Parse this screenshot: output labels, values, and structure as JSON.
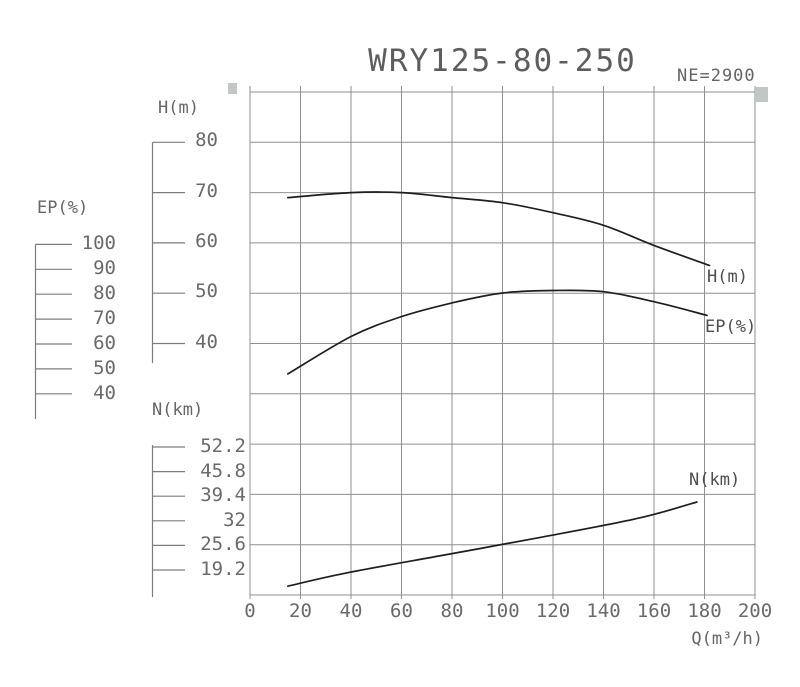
{
  "title": "WRY125-80-250",
  "speed_label": "NE=2900",
  "axes": {
    "h": {
      "title": "H(m)",
      "ticks": [
        "80",
        "70",
        "60",
        "50",
        "40"
      ]
    },
    "ep": {
      "title": "EP(%)",
      "ticks": [
        "100",
        "90",
        "80",
        "70",
        "60",
        "50",
        "40"
      ]
    },
    "n": {
      "title": "N(km)",
      "ticks": [
        "52.2",
        "45.8",
        "39.4",
        "32",
        "25.6",
        "19.2"
      ]
    },
    "q": {
      "title": "Q(m³/h)",
      "ticks": [
        "0",
        "20",
        "40",
        "60",
        "80",
        "100",
        "120",
        "140",
        "160",
        "180",
        "200"
      ]
    }
  },
  "curve_labels": {
    "h": "H(m)",
    "ep": "EP(%)",
    "n": "N(km)"
  },
  "chart_data": {
    "type": "line",
    "title": "WRY125-80-250",
    "annotations": [
      "NE=2900"
    ],
    "xlabel": "Q(m³/h)",
    "xlim": [
      0,
      200
    ],
    "x_tick_step": 20,
    "grid": true,
    "legend_position": "inline-right",
    "series": [
      {
        "name": "H(m)",
        "axis": "h",
        "axis_ticks": [
          80,
          70,
          60,
          50,
          40
        ],
        "x": [
          15,
          40,
          60,
          80,
          100,
          120,
          140,
          160,
          182
        ],
        "y": [
          69,
          70,
          70,
          69,
          68,
          66,
          63.5,
          59.5,
          55.5
        ]
      },
      {
        "name": "EP(%)",
        "axis": "ep",
        "axis_ticks": [
          100,
          90,
          80,
          70,
          60,
          50,
          40
        ],
        "x": [
          15,
          40,
          60,
          80,
          100,
          120,
          140,
          160,
          181
        ],
        "y": [
          48,
          63,
          71,
          76.5,
          80.5,
          81.5,
          81,
          77,
          71.5
        ]
      },
      {
        "name": "N(km)",
        "axis": "n",
        "axis_ticks": [
          52.2,
          45.8,
          39.4,
          32,
          25.6,
          19.2
        ],
        "x": [
          15,
          38,
          77,
          116,
          154,
          177
        ],
        "y": [
          15,
          18.4,
          23.1,
          27.8,
          32.7,
          36.9
        ]
      }
    ]
  }
}
